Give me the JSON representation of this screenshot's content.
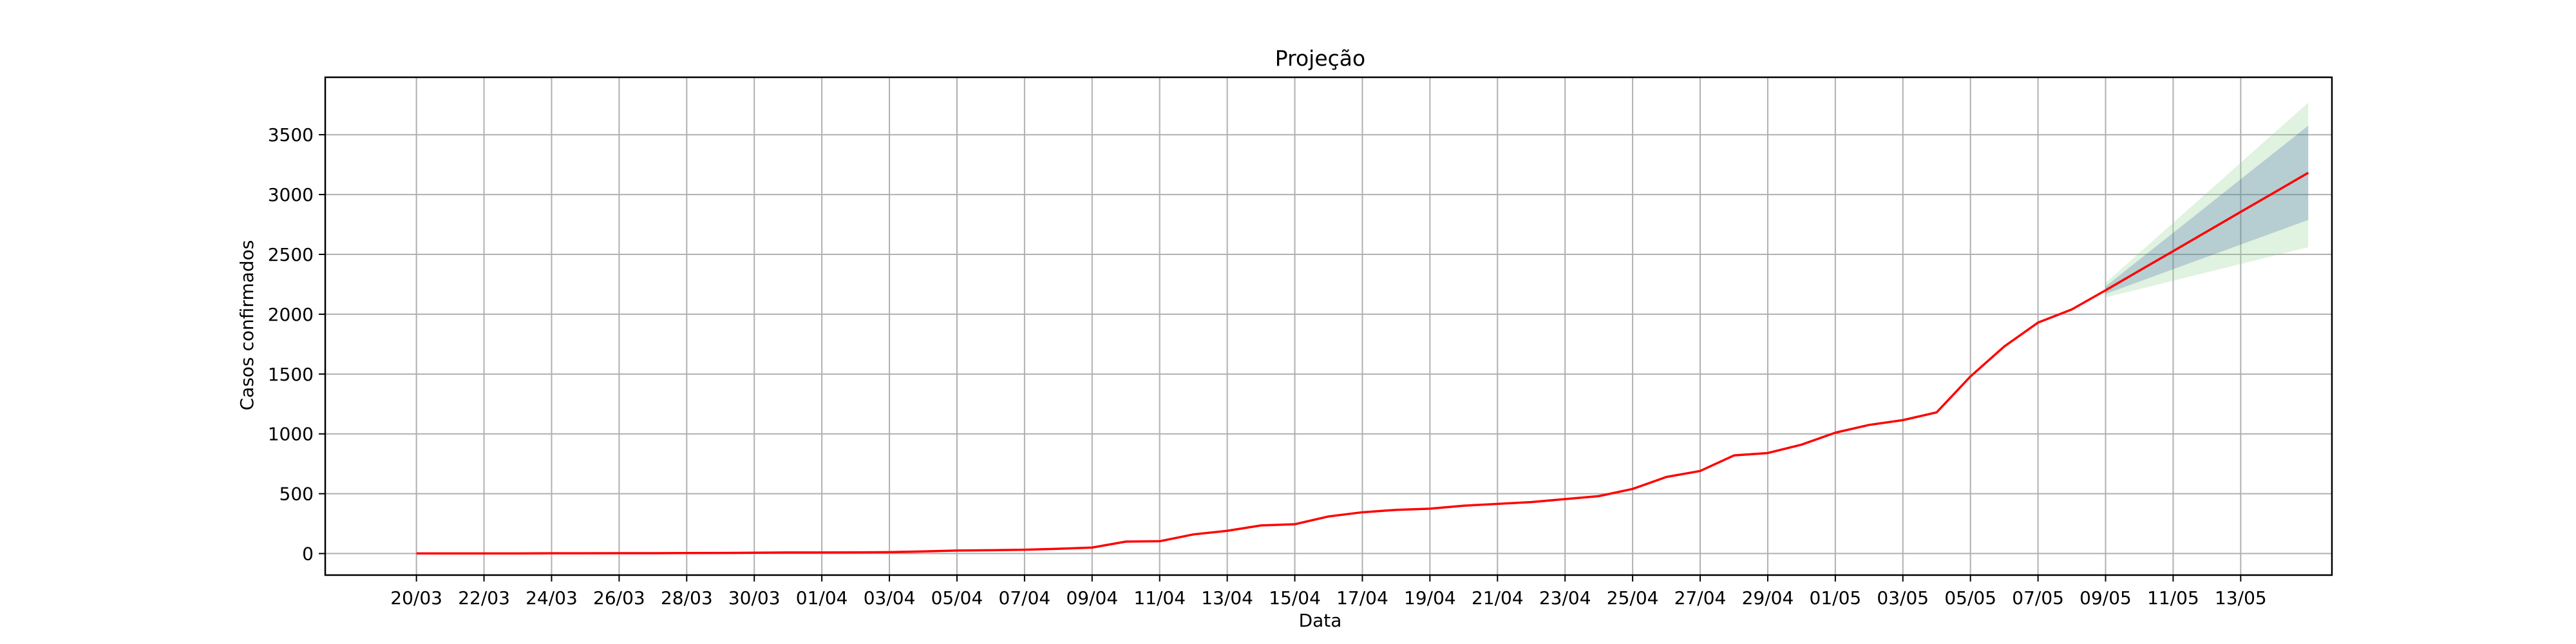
{
  "chart_data": {
    "type": "line",
    "title": "Projeção",
    "xlabel": "Data",
    "ylabel": "Casos confirmados",
    "xtick_labels": [
      "20/03",
      "22/03",
      "24/03",
      "26/03",
      "28/03",
      "30/03",
      "01/04",
      "03/04",
      "05/04",
      "07/04",
      "09/04",
      "11/04",
      "13/04",
      "15/04",
      "17/04",
      "19/04",
      "21/04",
      "23/04",
      "25/04",
      "27/04",
      "29/04",
      "01/05",
      "03/05",
      "05/05",
      "07/05",
      "09/05",
      "11/05",
      "13/05"
    ],
    "yticks": [
      0,
      500,
      1000,
      1500,
      2000,
      2500,
      3000,
      3500
    ],
    "xlim": [
      -2.7,
      56.7
    ],
    "ylim": [
      -180,
      3980
    ],
    "grid": true,
    "legend": "none",
    "colors": {
      "line": "#ff0000",
      "inner_band": "#1f4e9a",
      "outer_band": "#8fd18f",
      "grid": "#b0b0b0",
      "axes": "#000000"
    },
    "series": [
      {
        "name": "Casos confirmados",
        "x_start_label": "20/03",
        "values": [
          1,
          1,
          1,
          1,
          2,
          2,
          3,
          3,
          4,
          5,
          7,
          9,
          9,
          10,
          12,
          18,
          25,
          28,
          32,
          40,
          50,
          100,
          103,
          160,
          190,
          235,
          245,
          310,
          345,
          365,
          375,
          400,
          415,
          430,
          455,
          480,
          540,
          640,
          690,
          820,
          840,
          910,
          1010,
          1075,
          1115,
          1180,
          1480,
          1730,
          1930,
          2040,
          2200
        ]
      }
    ],
    "projection": {
      "x_start_index": 50,
      "mean": [
        2200,
        2364,
        2527,
        2691,
        2855,
        3018,
        3182
      ],
      "band_inner": {
        "lower": [
          2170,
          2273,
          2376,
          2479,
          2582,
          2685,
          2788
        ],
        "upper": [
          2232,
          2456,
          2680,
          2904,
          3128,
          3352,
          3576
        ]
      },
      "band_outer": {
        "lower": [
          2140,
          2210,
          2280,
          2350,
          2420,
          2490,
          2560
        ],
        "upper": [
          2262,
          2513,
          2764,
          3015,
          3266,
          3517,
          3768
        ]
      }
    }
  }
}
